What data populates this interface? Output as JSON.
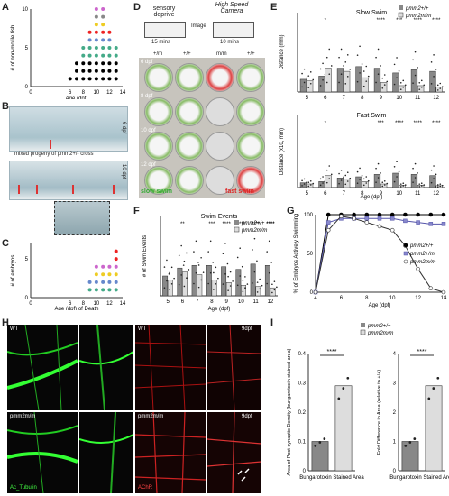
{
  "panels": {
    "A": {
      "letter": "A",
      "ylabel": "# of non-motile fish",
      "xlabel": "Age (dpf)",
      "ticks_x": [
        "0",
        "6",
        "8",
        "10",
        "12",
        "14"
      ],
      "ticks_y": [
        "0",
        "5",
        "10"
      ]
    },
    "B": {
      "letter": "B",
      "day1": "6 dpf",
      "day2": "10 dpf",
      "caption": "mixed progeny of pmm2+/- cross"
    },
    "C": {
      "letter": "C",
      "ylabel": "# of embryos",
      "xlabel": "Age (dpf) of Death",
      "ticks_x": [
        "0",
        "6",
        "8",
        "10",
        "12",
        "14"
      ],
      "ticks_y": [
        "0",
        "5"
      ]
    },
    "D": {
      "letter": "D",
      "box1": "sensory deprive",
      "box2": "High Speed Camera",
      "time1": "15 mins",
      "time2": "10 mins",
      "image_label": "Image",
      "genos": [
        "+/m",
        "+/+",
        "m/m",
        "+/+"
      ],
      "days": [
        "6 dpf",
        "8 dpf",
        "10 dpf",
        "12 dpf"
      ],
      "slow": "slow swim",
      "fast": "fast swim"
    },
    "E": {
      "letter": "E",
      "title1": "Slow Swim",
      "title2": "Fast Swim",
      "ylabel1": "Distance (mm)",
      "ylabel2": "Distance (x10, mm)",
      "legend": [
        "pmm2+/+",
        "pmm2m/m"
      ],
      "xlabel": "Age (dpf)",
      "sig1": [
        "*",
        "****",
        "***",
        "****",
        "****"
      ],
      "sig2": [
        "*",
        "***",
        "****",
        "****",
        "****"
      ]
    },
    "F": {
      "letter": "F",
      "title": "Swim Events",
      "ylabel": "# of Swim Events",
      "xlabel": "Age (dpf)",
      "legend": [
        "pmm2+/+",
        "pmm2m/m"
      ],
      "sig": [
        "**",
        "***",
        "****",
        "****",
        "****",
        "****",
        "****"
      ]
    },
    "G": {
      "letter": "G",
      "ylabel": "% of Embryos Actively Swimming",
      "xlabel": "Age (dpf)",
      "legend": [
        "pmm2+/+",
        "pmm2+/m",
        "pmm2m/m"
      ]
    },
    "H": {
      "letter": "H",
      "wt": "WT",
      "mut": "pmm2m/m",
      "stain1": "Ac_Tubulin",
      "stain2": "AChR",
      "day": "9dpf"
    },
    "I": {
      "letter": "I",
      "legend": [
        "pmm2+/+",
        "pmm2m/m"
      ],
      "ylabel1": "Area of Post-synaptic Density (bungarotoxin stained area)",
      "ylabel2": "Fold Difference in Area (relative to +/+)",
      "xlabel": "Bungarotoxin Stained Area",
      "sig": "****"
    }
  },
  "chart_data": [
    {
      "type": "scatter",
      "title": "",
      "xlabel": "Age (dpf)",
      "ylabel": "# of non-motile fish",
      "xlim": [
        0,
        14
      ],
      "ylim": [
        0,
        10
      ],
      "x": [
        6,
        7,
        8,
        9,
        10,
        11,
        12,
        13
      ],
      "y": [
        1,
        3,
        5,
        7,
        10,
        10,
        7,
        5
      ]
    },
    {
      "type": "scatter",
      "title": "",
      "xlabel": "Age (dpf) of Death",
      "ylabel": "# of embryos",
      "xlim": [
        0,
        14
      ],
      "ylim": [
        0,
        7
      ],
      "x": [
        9,
        10,
        11,
        12,
        13
      ],
      "y": [
        2,
        4,
        4,
        4,
        6
      ]
    },
    {
      "type": "bar",
      "title": "Slow Swim",
      "xlabel": "Age (dpf)",
      "ylabel": "Distance (mm)",
      "ylim": [
        0,
        500
      ],
      "categories": [
        "5",
        "6",
        "7",
        "8",
        "9",
        "10",
        "11",
        "12"
      ],
      "series": [
        {
          "name": "pmm2+/+",
          "values": [
            80,
            100,
            150,
            160,
            150,
            120,
            140,
            130
          ]
        },
        {
          "name": "pmm2m/m",
          "values": [
            70,
            150,
            130,
            90,
            60,
            40,
            40,
            30
          ]
        }
      ]
    },
    {
      "type": "bar",
      "title": "Fast Swim",
      "xlabel": "Age (dpf)",
      "ylabel": "Distance (x10, mm)",
      "ylim": [
        0,
        300
      ],
      "categories": [
        "5",
        "6",
        "7",
        "8",
        "9",
        "10",
        "11",
        "12"
      ],
      "series": [
        {
          "name": "pmm2+/+",
          "values": [
            20,
            25,
            40,
            45,
            55,
            60,
            55,
            50
          ]
        },
        {
          "name": "pmm2m/m",
          "values": [
            15,
            50,
            35,
            25,
            15,
            10,
            10,
            8
          ]
        }
      ]
    },
    {
      "type": "bar",
      "title": "Swim Events",
      "xlabel": "Age (dpf)",
      "ylabel": "# of Swim Events",
      "ylim": [
        0,
        600
      ],
      "categories": [
        "5",
        "6",
        "7",
        "8",
        "9",
        "10",
        "11",
        "12"
      ],
      "series": [
        {
          "name": "pmm2+/+",
          "values": [
            150,
            210,
            230,
            230,
            220,
            200,
            240,
            230
          ]
        },
        {
          "name": "pmm2m/m",
          "values": [
            120,
            180,
            160,
            120,
            100,
            80,
            70,
            60
          ]
        }
      ]
    },
    {
      "type": "line",
      "title": "",
      "xlabel": "Age (dpf)",
      "ylabel": "% of Embryos Actively Swimming",
      "xlim": [
        4,
        14
      ],
      "ylim": [
        0,
        100
      ],
      "x": [
        4,
        5,
        6,
        7,
        8,
        9,
        10,
        11,
        12,
        13,
        14
      ],
      "series": [
        {
          "name": "pmm2+/+",
          "values": [
            0,
            100,
            100,
            100,
            100,
            100,
            100,
            100,
            100,
            100,
            100
          ]
        },
        {
          "name": "pmm2+/m",
          "values": [
            0,
            90,
            95,
            95,
            95,
            95,
            95,
            92,
            90,
            88,
            88
          ]
        },
        {
          "name": "pmm2m/m",
          "values": [
            0,
            80,
            98,
            95,
            90,
            85,
            80,
            60,
            30,
            5,
            0
          ]
        }
      ]
    },
    {
      "type": "bar",
      "title": "",
      "xlabel": "Bungarotoxin Stained Area",
      "ylabel": "Area of Post-synaptic Density",
      "ylim": [
        0,
        0.4
      ],
      "categories": [
        "pmm2+/+",
        "pmm2m/m"
      ],
      "values": [
        0.1,
        0.29
      ]
    },
    {
      "type": "bar",
      "title": "",
      "xlabel": "Bungarotoxin Stained Area",
      "ylabel": "Fold Difference in Area",
      "ylim": [
        0,
        4
      ],
      "categories": [
        "pmm2+/+",
        "pmm2m/m"
      ],
      "values": [
        1,
        2.9
      ]
    }
  ]
}
